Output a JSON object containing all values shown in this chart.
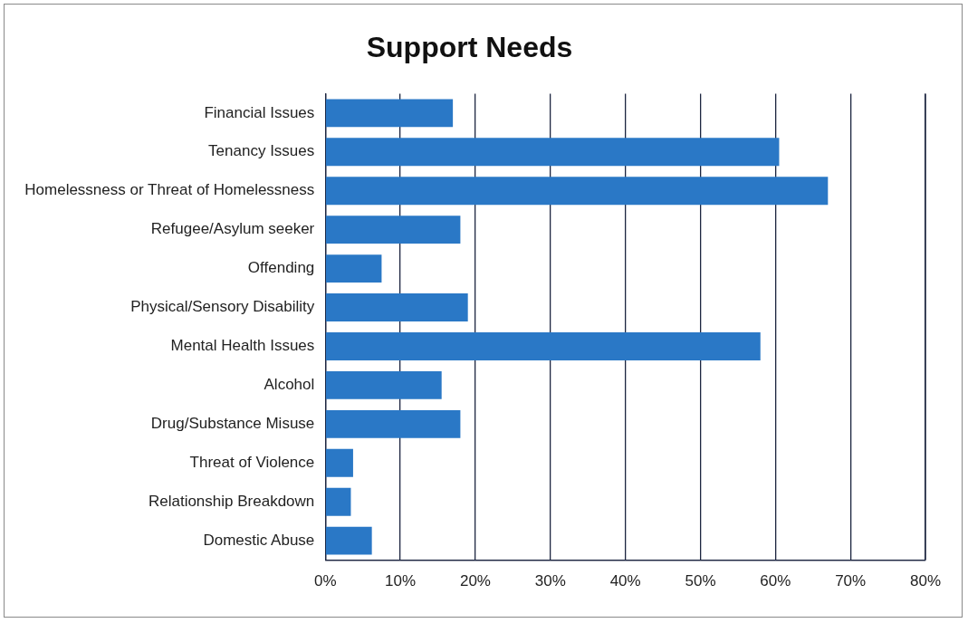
{
  "chart_data": {
    "type": "bar",
    "title": "Support Needs",
    "orientation": "horizontal",
    "categories": [
      "Financial Issues",
      "Tenancy Issues",
      "Homelessness or Threat of Homelessness",
      "Refugee/Asylum seeker",
      "Offending",
      "Physical/Sensory Disability",
      "Mental Health Issues",
      "Alcohol",
      "Drug/Substance Misuse",
      "Threat of Violence",
      "Relationship Breakdown",
      "Domestic Abuse"
    ],
    "values": [
      17,
      60.5,
      67,
      18,
      7.5,
      19,
      58,
      15.5,
      18,
      3.7,
      3.4,
      6.2
    ],
    "color": "#2a78c6",
    "xlim": [
      0,
      80
    ],
    "xticks": [
      {
        "value": 0,
        "label": "0%"
      },
      {
        "value": 10,
        "label": "10%"
      },
      {
        "value": 20,
        "label": "20%"
      },
      {
        "value": 30,
        "label": "30%"
      },
      {
        "value": 40,
        "label": "40%"
      },
      {
        "value": 50,
        "label": "50%"
      },
      {
        "value": 60,
        "label": "60%"
      },
      {
        "value": 70,
        "label": "70%"
      },
      {
        "value": 80,
        "label": "80%"
      }
    ],
    "grid": "x",
    "legend": false
  }
}
